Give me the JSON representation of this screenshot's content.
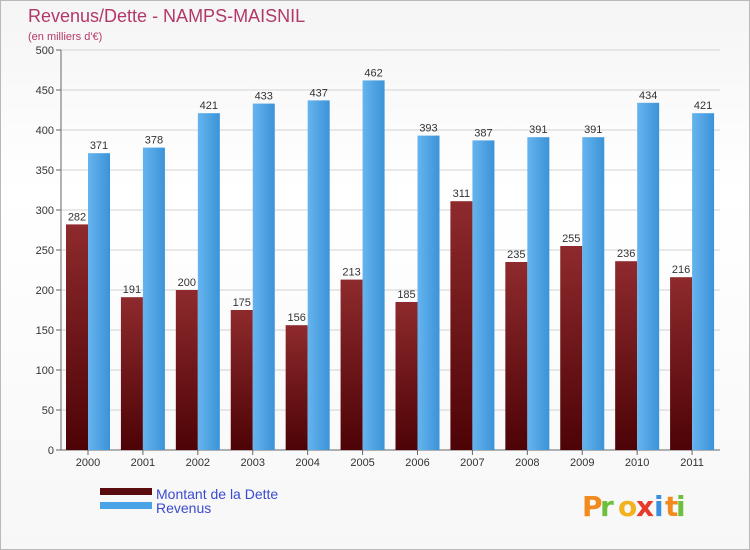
{
  "chart_data": {
    "type": "bar",
    "title": "Revenus/Dette - NAMPS-MAISNIL",
    "subtitle": "(en milliers d'€)",
    "categories": [
      "2000",
      "2001",
      "2002",
      "2003",
      "2004",
      "2005",
      "2006",
      "2007",
      "2008",
      "2009",
      "2010",
      "2011"
    ],
    "series": [
      {
        "name": "Montant de la Dette",
        "values": [
          282,
          191,
          200,
          175,
          156,
          213,
          185,
          311,
          235,
          255,
          236,
          216
        ],
        "color": "#7a1a1c"
      },
      {
        "name": "Revenus",
        "values": [
          371,
          378,
          421,
          433,
          437,
          462,
          393,
          387,
          391,
          391,
          434,
          421
        ],
        "color": "#4aa3e6"
      }
    ],
    "ylim": [
      0,
      500
    ],
    "yticks": [
      0,
      50,
      100,
      150,
      200,
      250,
      300,
      350,
      400,
      450,
      500
    ],
    "grid": true,
    "legend": "bottom-left"
  },
  "brand": {
    "name": "Proxiti"
  }
}
